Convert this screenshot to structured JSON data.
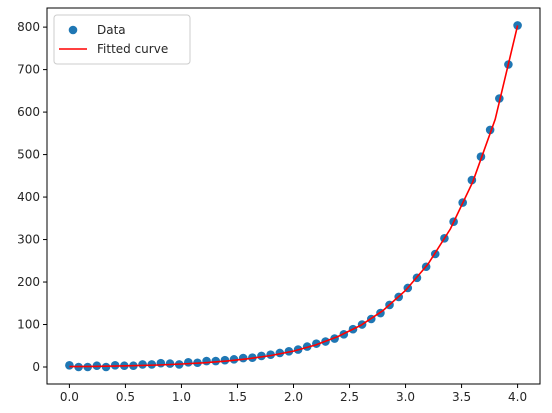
{
  "chart_data": {
    "type": "scatter",
    "title": "",
    "xlabel": "",
    "ylabel": "",
    "xlim": [
      -0.2,
      4.2
    ],
    "ylim": [
      -40,
      845
    ],
    "xticks": [
      0.0,
      0.5,
      1.0,
      1.5,
      2.0,
      2.5,
      3.0,
      3.5,
      4.0
    ],
    "xtick_labels": [
      "0.0",
      "0.5",
      "1.0",
      "1.5",
      "2.0",
      "2.5",
      "3.0",
      "3.5",
      "4.0"
    ],
    "yticks": [
      0,
      100,
      200,
      300,
      400,
      500,
      600,
      700,
      800
    ],
    "ytick_labels": [
      "0",
      "100",
      "200",
      "300",
      "400",
      "500",
      "600",
      "700",
      "800"
    ],
    "grid": false,
    "legend": "upper-left",
    "series": [
      {
        "name": "Data",
        "kind": "scatter",
        "color": "#1f77b4",
        "x": [
          0.0,
          0.082,
          0.163,
          0.245,
          0.327,
          0.408,
          0.49,
          0.571,
          0.653,
          0.735,
          0.816,
          0.898,
          0.98,
          1.061,
          1.143,
          1.224,
          1.306,
          1.388,
          1.469,
          1.551,
          1.633,
          1.714,
          1.796,
          1.878,
          1.959,
          2.041,
          2.122,
          2.204,
          2.286,
          2.367,
          2.449,
          2.531,
          2.612,
          2.694,
          2.776,
          2.857,
          2.939,
          3.02,
          3.102,
          3.184,
          3.265,
          3.347,
          3.429,
          3.51,
          3.592,
          3.673,
          3.755,
          3.837,
          3.918,
          4.0
        ],
        "y": [
          4,
          0,
          0,
          3,
          0,
          4,
          3,
          3,
          6,
          6,
          9,
          8,
          6,
          11,
          10,
          14,
          14,
          16,
          18,
          21,
          22,
          26,
          29,
          33,
          37,
          41,
          48,
          55,
          60,
          67,
          77,
          89,
          100,
          113,
          127,
          146,
          165,
          186,
          210,
          236,
          266,
          303,
          342,
          387,
          440,
          495,
          558,
          632,
          712,
          804
        ]
      },
      {
        "name": "Fitted curve",
        "kind": "line",
        "color": "#ff0000",
        "x": [
          0.0,
          0.2,
          0.4,
          0.6,
          0.8,
          1.0,
          1.2,
          1.4,
          1.6,
          1.8,
          2.0,
          2.2,
          2.4,
          2.6,
          2.8,
          3.0,
          3.2,
          3.4,
          3.6,
          3.8,
          4.0
        ],
        "y": [
          1,
          1.5,
          2.2,
          3.2,
          4.8,
          7,
          10,
          14,
          19.5,
          27,
          37.5,
          52,
          72,
          98,
          133,
          180,
          242,
          325,
          436,
          583,
          804
        ]
      }
    ]
  }
}
